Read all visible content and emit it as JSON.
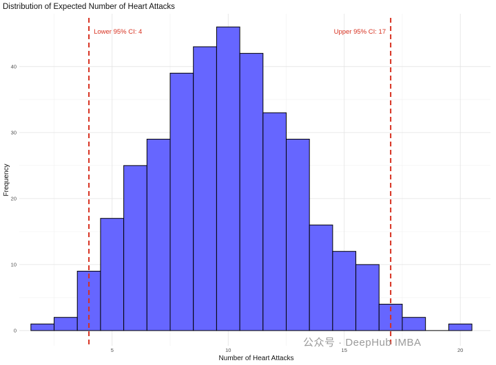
{
  "chart_data": {
    "type": "bar",
    "title": "Distribution of Expected Number of Heart Attacks",
    "xlabel": "Number of Heart Attacks",
    "ylabel": "Frequency",
    "bin_width": 1,
    "bins": [
      {
        "x": 2,
        "count": 1
      },
      {
        "x": 3,
        "count": 2
      },
      {
        "x": 4,
        "count": 9
      },
      {
        "x": 5,
        "count": 17
      },
      {
        "x": 6,
        "count": 25
      },
      {
        "x": 7,
        "count": 29
      },
      {
        "x": 8,
        "count": 39
      },
      {
        "x": 9,
        "count": 43
      },
      {
        "x": 10,
        "count": 46
      },
      {
        "x": 11,
        "count": 42
      },
      {
        "x": 12,
        "count": 33
      },
      {
        "x": 13,
        "count": 29
      },
      {
        "x": 14,
        "count": 16
      },
      {
        "x": 15,
        "count": 12
      },
      {
        "x": 16,
        "count": 10
      },
      {
        "x": 17,
        "count": 4
      },
      {
        "x": 18,
        "count": 2
      },
      {
        "x": 19,
        "count": 0
      },
      {
        "x": 20,
        "count": 1
      }
    ],
    "xlim": [
      1.0,
      21.3
    ],
    "ylim": [
      -2.3,
      48.0
    ],
    "x_ticks": [
      5,
      10,
      15,
      20
    ],
    "y_ticks": [
      0,
      10,
      20,
      30,
      40
    ],
    "grid": true,
    "bar_fill": "#6666ff",
    "bar_stroke": "#000000",
    "ci_lines": [
      {
        "x": 4,
        "label": "Lower 95% CI: 4",
        "label_side": "right"
      },
      {
        "x": 17,
        "label": "Upper 95% CI: 17",
        "label_side": "left"
      }
    ],
    "ci_color": "#d7301f"
  },
  "watermark": {
    "text": "公众号 · DeepHub IMBA"
  }
}
